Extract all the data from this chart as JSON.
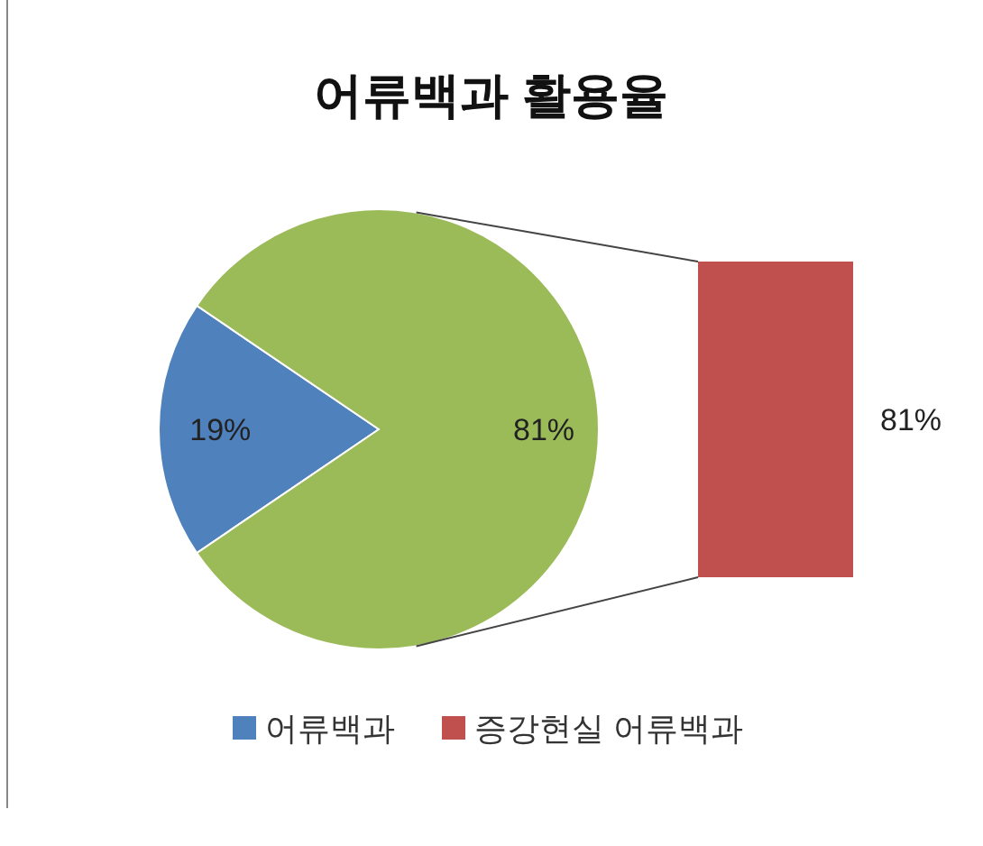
{
  "chart_data": [
    {
      "type": "pie",
      "title": "어류백과 활용율",
      "categories": [
        "어류백과",
        null
      ],
      "values": [
        19,
        81
      ],
      "value_labels": [
        "19%",
        "81%"
      ],
      "colors": [
        "#4f81bd",
        "#9bbb59"
      ],
      "legend": "bottom"
    },
    {
      "type": "other",
      "categories": [
        null
      ],
      "series": [
        {
          "name": "증강현실 어류백과",
          "color": "#c0504d",
          "values": [
            81
          ],
          "value_labels": [
            "81%"
          ]
        }
      ],
      "legend": "bottom"
    }
  ]
}
